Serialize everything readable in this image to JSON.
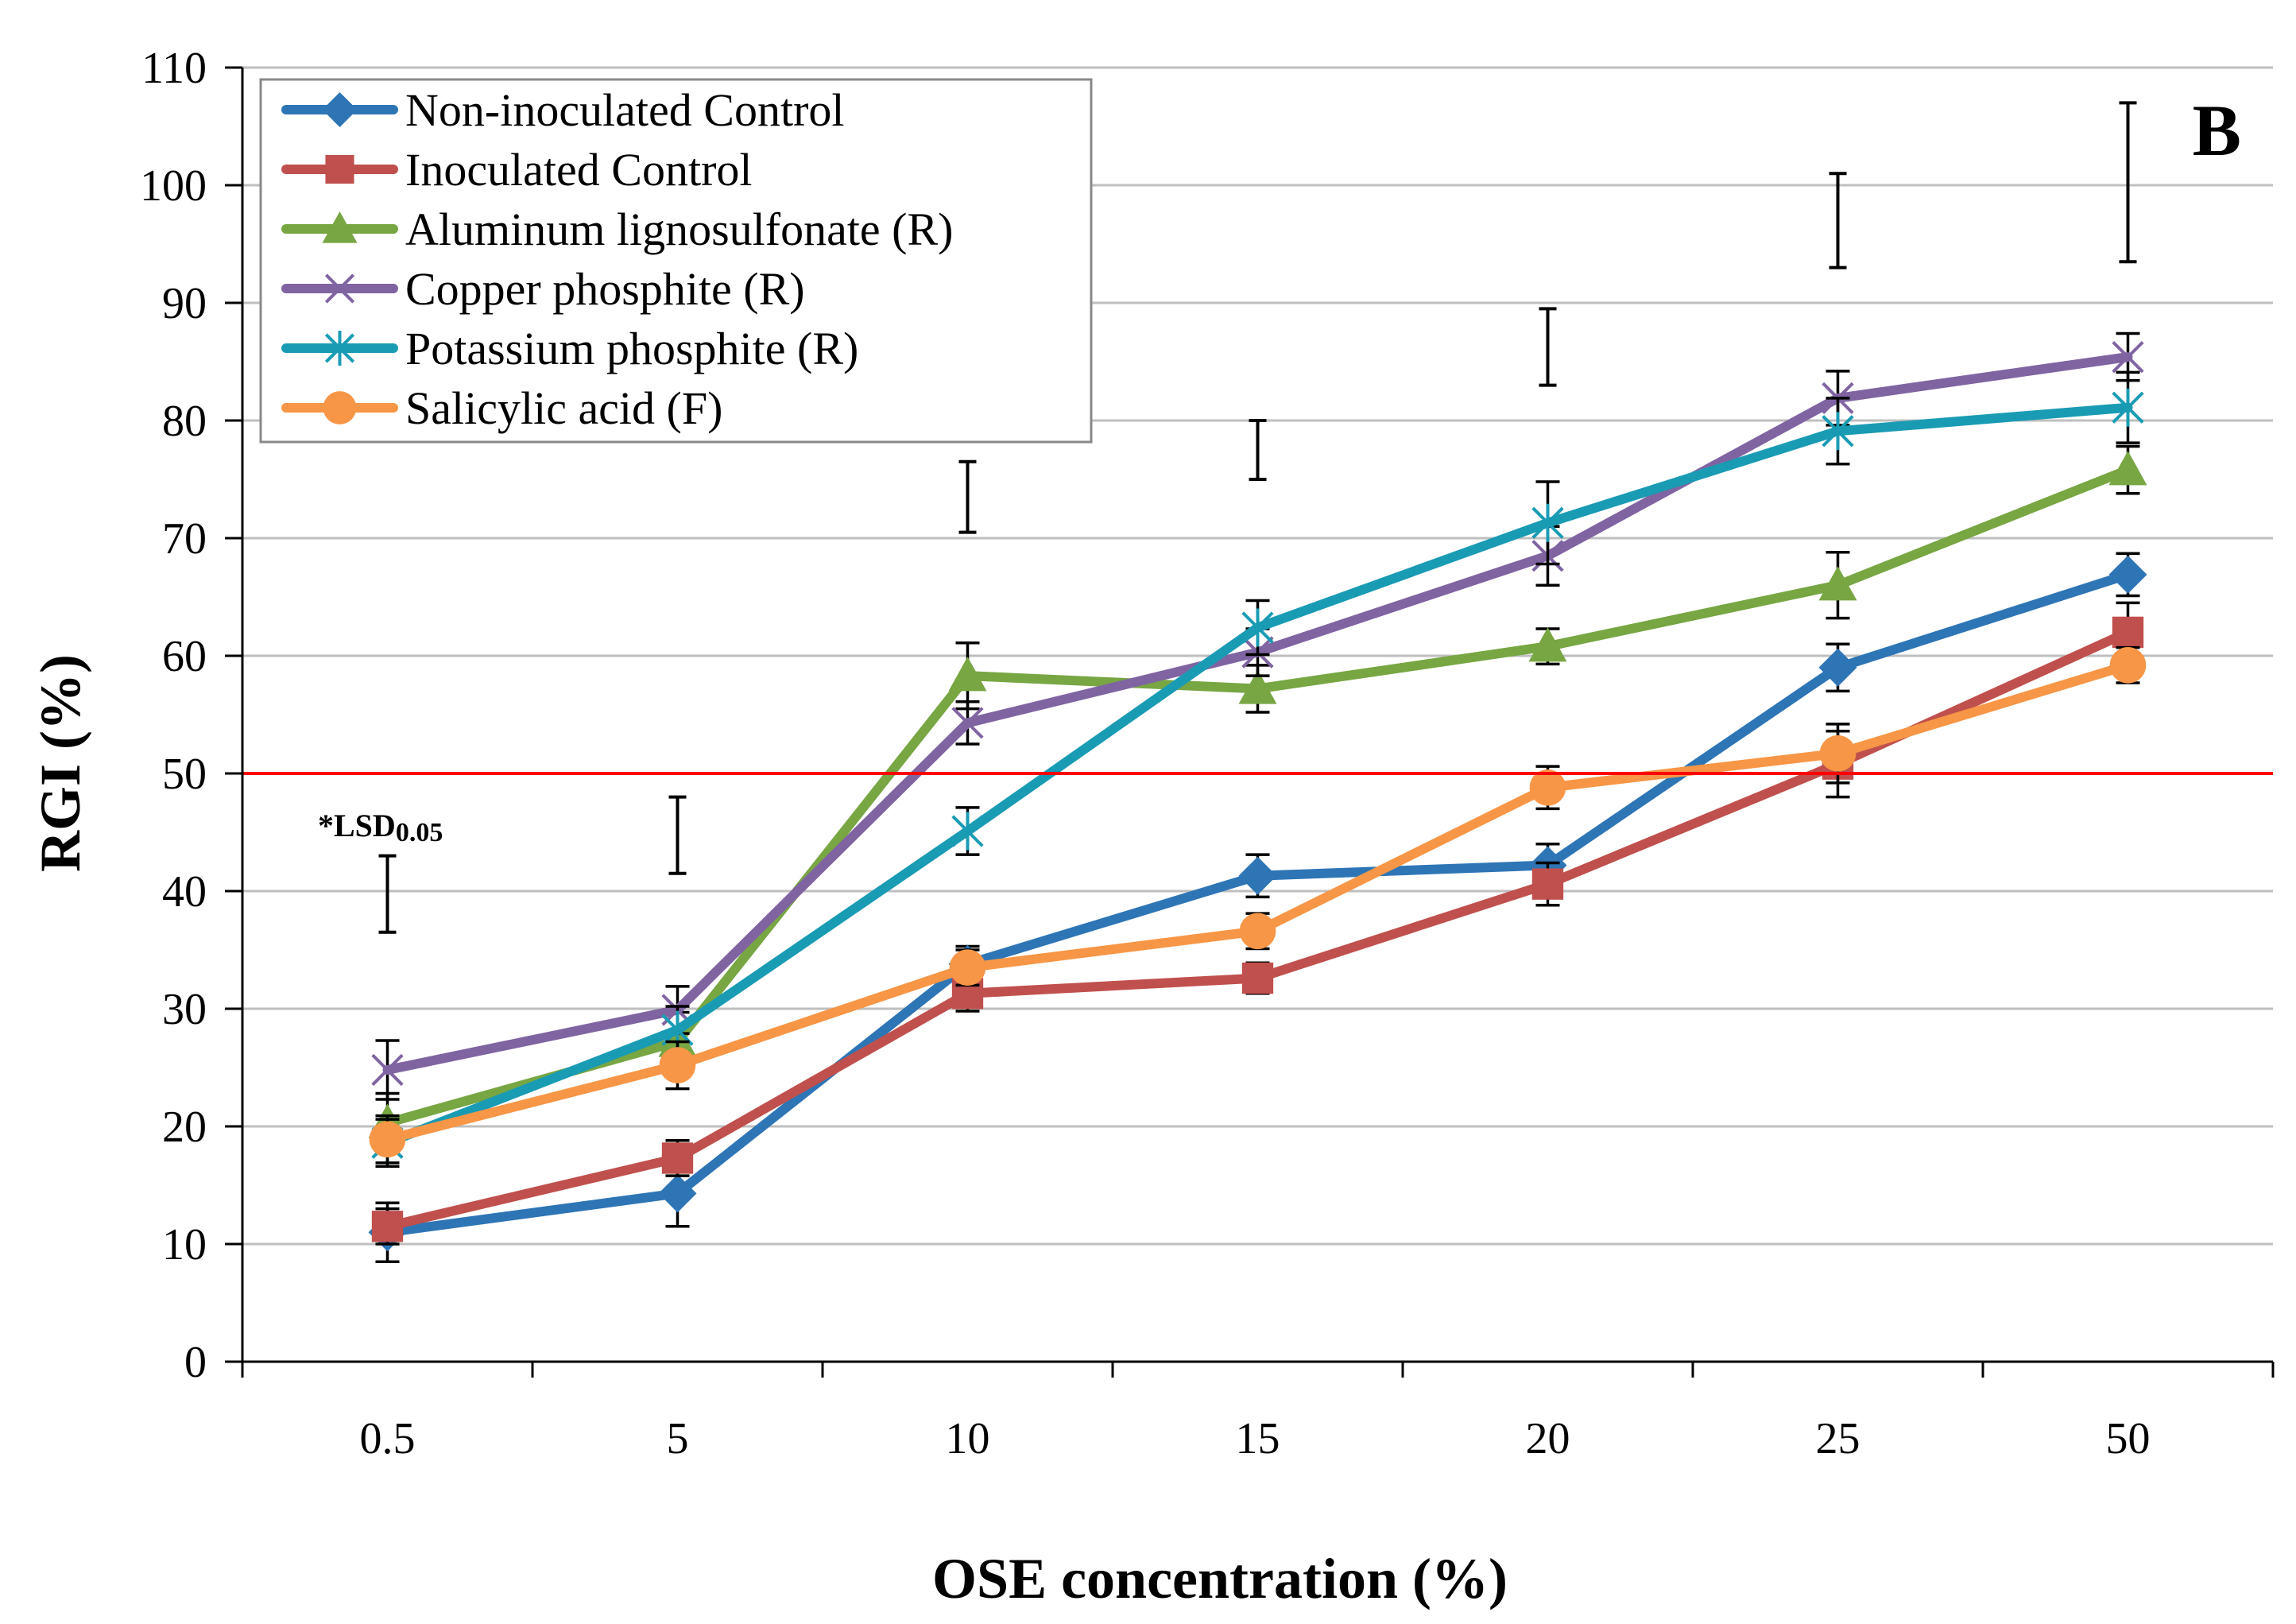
{
  "chart_data": {
    "type": "line",
    "panel_label": "B",
    "title": "",
    "xlabel": "OSE concentration (%)",
    "ylabel": "RGI (%)",
    "categories": [
      "0.5",
      "5",
      "10",
      "15",
      "20",
      "25",
      "50"
    ],
    "ylim": [
      0,
      110
    ],
    "yticks": [
      "0",
      "10",
      "20",
      "30",
      "40",
      "50",
      "60",
      "70",
      "80",
      "90",
      "100",
      "110"
    ],
    "grid": "horizontal",
    "legend_position": "top-left",
    "reference_line": {
      "value": 50,
      "color": "#FF0000"
    },
    "lsd": {
      "label_prefix": "*LSD",
      "label_sub": "0.05",
      "intervals": [
        [
          36.5,
          43
        ],
        [
          41.5,
          48
        ],
        [
          70.5,
          76.5
        ],
        [
          75,
          80
        ],
        [
          83,
          89.5
        ],
        [
          93,
          101
        ],
        [
          93.5,
          107
        ]
      ]
    },
    "series": [
      {
        "name": "Non-inoculated Control",
        "color": "#2E75B6",
        "marker": "diamond",
        "values": [
          11,
          14.3,
          33.8,
          41.3,
          42.2,
          59,
          66.9
        ],
        "errors": [
          2.5,
          2.8,
          1.5,
          1.8,
          1.8,
          2,
          1.8
        ]
      },
      {
        "name": "Inoculated Control",
        "color": "#C0504D",
        "marker": "square",
        "values": [
          11.5,
          17.3,
          31.3,
          32.6,
          40.6,
          50.8,
          62
        ],
        "errors": [
          1.5,
          1.5,
          1.5,
          1.3,
          1.8,
          2.8,
          2.5
        ]
      },
      {
        "name": "Aluminum lignosulfonate (R)",
        "color": "#77A643",
        "marker": "triangle",
        "values": [
          20.3,
          27.2,
          58.3,
          57.2,
          60.8,
          66,
          75.8
        ],
        "errors": [
          2.5,
          2.5,
          2.8,
          2,
          1.5,
          2.8,
          2
        ]
      },
      {
        "name": "Copper phosphite (R)",
        "color": "#8064A2",
        "marker": "x",
        "values": [
          24.8,
          29.9,
          54.3,
          60.3,
          68.5,
          81.9,
          85.4
        ],
        "errors": [
          2.5,
          2,
          1.8,
          2,
          2.5,
          2.3,
          2
        ]
      },
      {
        "name": "Potassium phosphite (R)",
        "color": "#1A9BB4",
        "marker": "star",
        "values": [
          18.6,
          28.2,
          45.1,
          62.4,
          71.3,
          79.1,
          81.1
        ],
        "errors": [
          2,
          2,
          2,
          2.3,
          3.5,
          2.8,
          3
        ]
      },
      {
        "name": "Salicylic acid (F)",
        "color": "#F79646",
        "marker": "circle",
        "values": [
          18.9,
          25.2,
          33.5,
          36.6,
          48.8,
          51.7,
          59.2
        ],
        "errors": [
          2,
          2,
          1.5,
          1.5,
          1.8,
          2.5,
          1.5
        ]
      }
    ]
  }
}
